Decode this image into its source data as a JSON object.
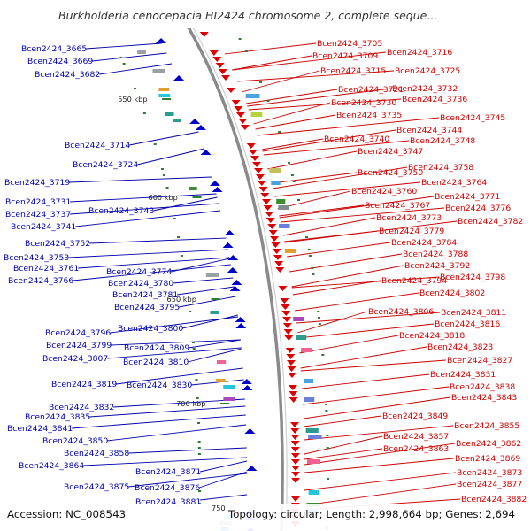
{
  "map": {
    "title": "Burkholderia cenocepacia HI2424 chromosome 2, complete seque...",
    "accession": "Accession: NC_008543",
    "topology": "Topology: circular; Length: 2,998,664 bp; Genes: 2,694",
    "partial_kbp_label": "750",
    "colors": {
      "forward_strand": "#0000cc",
      "reverse_strand": "#dd0000",
      "left_labels": "#0000aa",
      "right_labels": "#cc0000",
      "backbone": "#8a8a8a"
    },
    "kbp_ticks": [
      "550 kbp",
      "600 kbp",
      "650 kbp",
      "700 kbp"
    ],
    "left_genes": [
      "Bcen2424_3665",
      "Bcen2424_3669",
      "Bcen2424_3682",
      "Bcen2424_3714",
      "Bcen2424_3724",
      "Bcen2424_3719",
      "Bcen2424_3731",
      "Bcen2424_3737",
      "Bcen2424_3743",
      "Bcen2424_3741",
      "Bcen2424_3752",
      "Bcen2424_3753",
      "Bcen2424_3761",
      "Bcen2424_3774",
      "Bcen2424_3766",
      "Bcen2424_3780",
      "Bcen2424_3781",
      "Bcen2424_3795",
      "Bcen2424_3800",
      "Bcen2424_3796",
      "Bcen2424_3799",
      "Bcen2424_3809",
      "Bcen2424_3807",
      "Bcen2424_3810",
      "Bcen2424_3819",
      "Bcen2424_3830",
      "Bcen2424_3832",
      "Bcen2424_3835",
      "Bcen2424_3841",
      "Bcen2424_3850",
      "Bcen2424_3858",
      "Bcen2424_3864",
      "Bcen2424_3871",
      "Bcen2424_3875",
      "Bcen2424_3876",
      "Bcen2424_3881"
    ],
    "right_genes": [
      "Bcen2424_3705",
      "Bcen2424_3709",
      "Bcen2424_3716",
      "Bcen2424_3715",
      "Bcen2424_3725",
      "Bcen2424_3721",
      "Bcen2424_3732",
      "Bcen2424_3730",
      "Bcen2424_3736",
      "Bcen2424_3735",
      "Bcen2424_3745",
      "Bcen2424_3744",
      "Bcen2424_3740",
      "Bcen2424_3748",
      "Bcen2424_3747",
      "Bcen2424_3758",
      "Bcen2424_3750",
      "Bcen2424_3764",
      "Bcen2424_3760",
      "Bcen2424_3771",
      "Bcen2424_3767",
      "Bcen2424_3776",
      "Bcen2424_3773",
      "Bcen2424_3782",
      "Bcen2424_3779",
      "Bcen2424_3784",
      "Bcen2424_3788",
      "Bcen2424_3792",
      "Bcen2424_3798",
      "Bcen2424_3794",
      "Bcen2424_3802",
      "Bcen2424_3806",
      "Bcen2424_3811",
      "Bcen2424_3816",
      "Bcen2424_3818",
      "Bcen2424_3823",
      "Bcen2424_3827",
      "Bcen2424_3831",
      "Bcen2424_3838",
      "Bcen2424_3843",
      "Bcen2424_3849",
      "Bcen2424_3855",
      "Bcen2424_3857",
      "Bcen2424_3862",
      "Bcen2424_3863",
      "Bcen2424_3869",
      "Bcen2424_3873",
      "Bcen2424_3877",
      "Bcen2424_3882"
    ]
  }
}
